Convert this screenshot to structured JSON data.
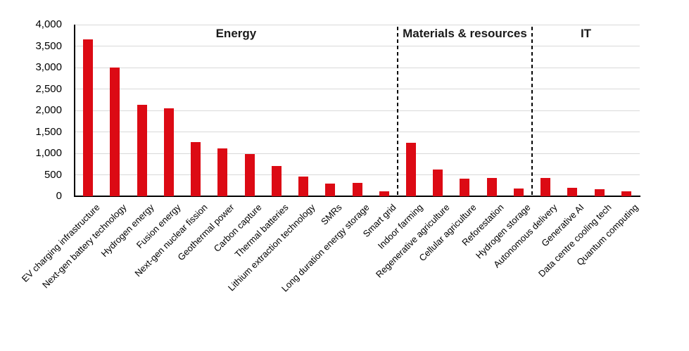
{
  "chart_data": {
    "type": "bar",
    "title": "",
    "xlabel": "",
    "ylabel": "",
    "ylim": [
      0,
      4000
    ],
    "ytick_interval": 500,
    "ytick_labels": [
      "0",
      "500",
      "1,000",
      "1,500",
      "2,000",
      "2,500",
      "3,000",
      "3,500",
      "4,000"
    ],
    "grid": true,
    "legend": "none",
    "bar_color": "#dc0a14",
    "gridline_color": "#d9d9d9",
    "axis_color": "#000000",
    "categories": [
      "EV charging infrastructure",
      "Next-gen battery technology",
      "Hydrogen energy",
      "Fusion energy",
      "Next-gen nuclear fission",
      "Geothermal power",
      "Carbon capture",
      "Thermal batteries",
      "Lithium extraction technology",
      "SMRs",
      "Long duration energy storage",
      "Smart grid",
      "Indoor farming",
      "Regenerative agriculture",
      "Cellular agriculture",
      "Reforestation",
      "Hydrogen storage",
      "Autonomous delivery",
      "Generative AI",
      "Data centre cooling tech",
      "Quantum computing"
    ],
    "values": [
      3650,
      3000,
      2130,
      2050,
      1270,
      1120,
      990,
      700,
      460,
      300,
      310,
      110,
      1250,
      620,
      410,
      430,
      180,
      430,
      190,
      160,
      120
    ],
    "sections": [
      {
        "label": "Energy",
        "start": 0,
        "end": 11
      },
      {
        "label": "Materials & resources",
        "start": 12,
        "end": 16
      },
      {
        "label": "IT",
        "start": 17,
        "end": 20
      }
    ]
  }
}
